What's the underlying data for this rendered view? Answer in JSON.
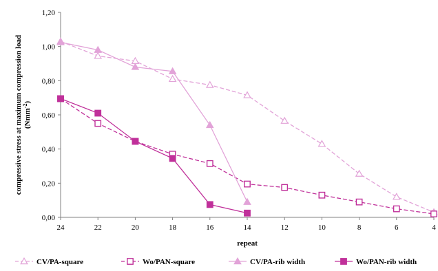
{
  "chart_data": {
    "type": "line",
    "xlabel": "repeat",
    "ylabel_line1": "compressive stress at maximum compression load",
    "ylabel_unit_prefix": "(Nmm",
    "ylabel_unit_sup": "-2",
    "ylabel_unit_suffix": ")",
    "x_ticks": [
      "24",
      "22",
      "20",
      "18",
      "16",
      "14",
      "12",
      "10",
      "8",
      "6",
      "4"
    ],
    "y_ticks": [
      "0,00",
      "0,20",
      "0,40",
      "0,60",
      "0,80",
      "1,00",
      "1,20"
    ],
    "xlim": [
      24,
      4
    ],
    "ylim": [
      0,
      1.2
    ],
    "grid": false,
    "legend_position": "bottom",
    "series": [
      {
        "name": "CV/PA-square",
        "color": "#e2a3d8",
        "dash": true,
        "marker": "triangle-open",
        "x": [
          24,
          22,
          20,
          18,
          16,
          14,
          12,
          10,
          8,
          6,
          4
        ],
        "y": [
          1.03,
          0.945,
          0.915,
          0.81,
          0.775,
          0.715,
          0.565,
          0.43,
          0.255,
          0.12,
          0.03
        ]
      },
      {
        "name": "Wo/PAN-square",
        "color": "#c0309a",
        "dash": true,
        "marker": "square-open",
        "x": [
          24,
          22,
          20,
          18,
          16,
          14,
          12,
          10,
          8,
          6,
          4
        ],
        "y": [
          0.695,
          0.55,
          0.445,
          0.37,
          0.315,
          0.195,
          0.175,
          0.13,
          0.09,
          0.05,
          0.02
        ]
      },
      {
        "name": "CV/PA-rib width",
        "color": "#e2a3d8",
        "dash": false,
        "marker": "triangle-filled",
        "x": [
          24,
          22,
          20,
          18,
          16,
          14
        ],
        "y": [
          1.025,
          0.98,
          0.88,
          0.855,
          0.54,
          0.09
        ]
      },
      {
        "name": "Wo/PAN-rib width",
        "color": "#c0309a",
        "dash": false,
        "marker": "square-filled",
        "x": [
          24,
          22,
          20,
          18,
          16,
          14
        ],
        "y": [
          0.695,
          0.61,
          0.445,
          0.345,
          0.075,
          0.025
        ]
      }
    ]
  }
}
